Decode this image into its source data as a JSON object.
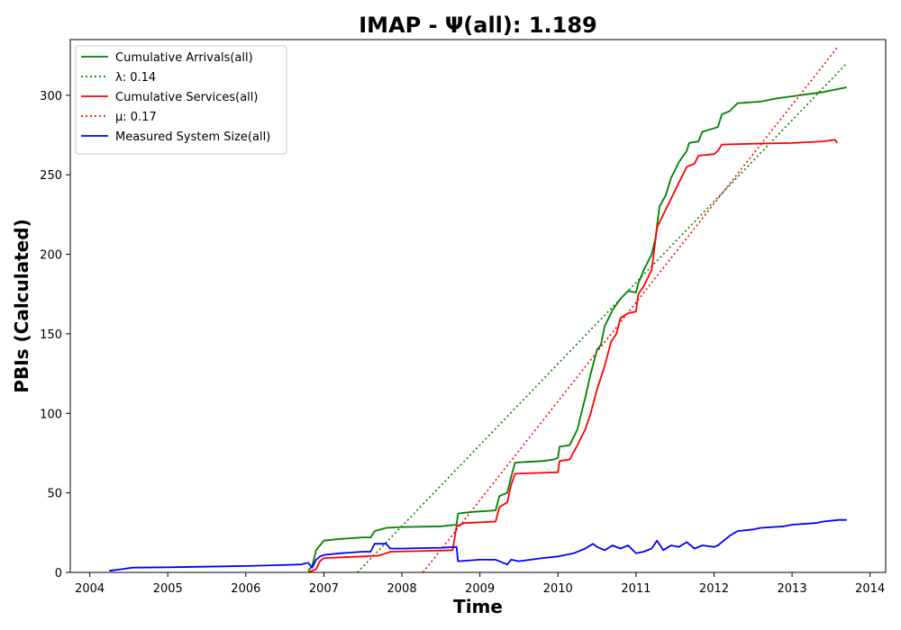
{
  "chart_data": {
    "type": "line",
    "title": "IMAP -  Ψ(all): 1.189",
    "xlabel": "Time",
    "ylabel": "PBIs (Calculated)",
    "xlim": [
      2003.75,
      2014.2
    ],
    "ylim": [
      0,
      335
    ],
    "x_ticks": [
      2004,
      2005,
      2006,
      2007,
      2008,
      2009,
      2010,
      2011,
      2012,
      2013,
      2014
    ],
    "y_ticks": [
      0,
      50,
      100,
      150,
      200,
      250,
      300
    ],
    "legend_position": "upper-left",
    "series": [
      {
        "name": "Cumulative Arrivals(all)",
        "color": "#008000",
        "style": "solid",
        "points": [
          [
            2006.8,
            1
          ],
          [
            2006.85,
            4
          ],
          [
            2006.9,
            14
          ],
          [
            2006.95,
            17
          ],
          [
            2007.0,
            20
          ],
          [
            2007.2,
            21
          ],
          [
            2007.5,
            22
          ],
          [
            2007.6,
            22
          ],
          [
            2007.65,
            26
          ],
          [
            2007.8,
            28
          ],
          [
            2008.0,
            28.5
          ],
          [
            2008.5,
            29
          ],
          [
            2008.7,
            30
          ],
          [
            2008.72,
            37
          ],
          [
            2008.9,
            38
          ],
          [
            2009.2,
            39
          ],
          [
            2009.25,
            48
          ],
          [
            2009.35,
            50
          ],
          [
            2009.4,
            60
          ],
          [
            2009.45,
            69
          ],
          [
            2009.6,
            69.5
          ],
          [
            2009.8,
            70
          ],
          [
            2009.95,
            71
          ],
          [
            2010.0,
            72
          ],
          [
            2010.02,
            79
          ],
          [
            2010.15,
            80
          ],
          [
            2010.2,
            85
          ],
          [
            2010.25,
            90
          ],
          [
            2010.3,
            100
          ],
          [
            2010.35,
            110
          ],
          [
            2010.42,
            125
          ],
          [
            2010.5,
            140
          ],
          [
            2010.55,
            143
          ],
          [
            2010.6,
            155
          ],
          [
            2010.65,
            160
          ],
          [
            2010.7,
            165
          ],
          [
            2010.8,
            172
          ],
          [
            2010.9,
            177
          ],
          [
            2011.0,
            176
          ],
          [
            2011.03,
            182
          ],
          [
            2011.1,
            190
          ],
          [
            2011.2,
            200
          ],
          [
            2011.25,
            210
          ],
          [
            2011.3,
            230
          ],
          [
            2011.38,
            237
          ],
          [
            2011.45,
            248
          ],
          [
            2011.55,
            258
          ],
          [
            2011.65,
            265
          ],
          [
            2011.68,
            270
          ],
          [
            2011.8,
            271
          ],
          [
            2011.85,
            277
          ],
          [
            2012.05,
            280
          ],
          [
            2012.1,
            288
          ],
          [
            2012.2,
            290
          ],
          [
            2012.3,
            295
          ],
          [
            2012.6,
            296
          ],
          [
            2012.8,
            298
          ],
          [
            2013.1,
            300
          ],
          [
            2013.4,
            302
          ],
          [
            2013.6,
            304
          ],
          [
            2013.7,
            305
          ]
        ]
      },
      {
        "name": "λ: 0.14",
        "color": "#008000",
        "style": "dotted",
        "points": [
          [
            2007.43,
            0
          ],
          [
            2013.7,
            320
          ]
        ]
      },
      {
        "name": "Cumulative Services(all)",
        "color": "#ff0000",
        "style": "solid",
        "points": [
          [
            2006.8,
            0
          ],
          [
            2006.9,
            2
          ],
          [
            2006.95,
            7
          ],
          [
            2007.0,
            9
          ],
          [
            2007.5,
            10
          ],
          [
            2007.7,
            10.5
          ],
          [
            2007.8,
            12
          ],
          [
            2007.85,
            13
          ],
          [
            2008.3,
            13.5
          ],
          [
            2008.65,
            14
          ],
          [
            2008.7,
            29
          ],
          [
            2008.8,
            31
          ],
          [
            2009.2,
            32
          ],
          [
            2009.25,
            41
          ],
          [
            2009.35,
            44
          ],
          [
            2009.4,
            55
          ],
          [
            2009.45,
            62
          ],
          [
            2009.7,
            62.5
          ],
          [
            2010.0,
            63
          ],
          [
            2010.02,
            70
          ],
          [
            2010.15,
            71
          ],
          [
            2010.25,
            80
          ],
          [
            2010.35,
            90
          ],
          [
            2010.42,
            100
          ],
          [
            2010.5,
            115
          ],
          [
            2010.6,
            130
          ],
          [
            2010.68,
            145
          ],
          [
            2010.75,
            150
          ],
          [
            2010.8,
            160
          ],
          [
            2010.9,
            163
          ],
          [
            2011.0,
            164
          ],
          [
            2011.03,
            175
          ],
          [
            2011.1,
            180
          ],
          [
            2011.2,
            190
          ],
          [
            2011.27,
            217
          ],
          [
            2011.35,
            225
          ],
          [
            2011.45,
            235
          ],
          [
            2011.55,
            245
          ],
          [
            2011.65,
            255
          ],
          [
            2011.75,
            257
          ],
          [
            2011.8,
            262
          ],
          [
            2012.0,
            263
          ],
          [
            2012.05,
            265
          ],
          [
            2012.1,
            269
          ],
          [
            2012.5,
            269.5
          ],
          [
            2013.0,
            270
          ],
          [
            2013.4,
            271
          ],
          [
            2013.55,
            272
          ],
          [
            2013.58,
            270
          ]
        ]
      },
      {
        "name": "μ: 0.17",
        "color": "#ff0000",
        "style": "dotted",
        "points": [
          [
            2008.27,
            0
          ],
          [
            2013.58,
            330
          ]
        ]
      },
      {
        "name": "Measured System Size(all)",
        "color": "#0000ff",
        "style": "solid",
        "points": [
          [
            2004.25,
            1
          ],
          [
            2004.4,
            2
          ],
          [
            2004.55,
            3
          ],
          [
            2005.0,
            3.2
          ],
          [
            2006.0,
            4
          ],
          [
            2006.4,
            4.5
          ],
          [
            2006.7,
            5
          ],
          [
            2006.8,
            6
          ],
          [
            2006.85,
            3
          ],
          [
            2006.9,
            8
          ],
          [
            2006.95,
            10
          ],
          [
            2007.0,
            11
          ],
          [
            2007.2,
            12
          ],
          [
            2007.5,
            13
          ],
          [
            2007.6,
            13
          ],
          [
            2007.65,
            18
          ],
          [
            2007.8,
            18
          ],
          [
            2007.85,
            15
          ],
          [
            2008.0,
            15
          ],
          [
            2008.5,
            15.5
          ],
          [
            2008.7,
            16
          ],
          [
            2008.72,
            7
          ],
          [
            2009.0,
            8
          ],
          [
            2009.2,
            8
          ],
          [
            2009.3,
            6
          ],
          [
            2009.35,
            5
          ],
          [
            2009.4,
            8
          ],
          [
            2009.5,
            7
          ],
          [
            2009.8,
            9
          ],
          [
            2010.0,
            10
          ],
          [
            2010.2,
            12
          ],
          [
            2010.35,
            15
          ],
          [
            2010.45,
            18
          ],
          [
            2010.5,
            16
          ],
          [
            2010.6,
            14
          ],
          [
            2010.7,
            17
          ],
          [
            2010.8,
            15
          ],
          [
            2010.9,
            17
          ],
          [
            2011.0,
            12
          ],
          [
            2011.1,
            13
          ],
          [
            2011.2,
            15
          ],
          [
            2011.27,
            20
          ],
          [
            2011.35,
            14
          ],
          [
            2011.45,
            17
          ],
          [
            2011.55,
            16
          ],
          [
            2011.65,
            19
          ],
          [
            2011.75,
            15
          ],
          [
            2011.85,
            17
          ],
          [
            2012.0,
            16
          ],
          [
            2012.05,
            17
          ],
          [
            2012.1,
            19
          ],
          [
            2012.2,
            23
          ],
          [
            2012.3,
            26
          ],
          [
            2012.5,
            27
          ],
          [
            2012.6,
            28
          ],
          [
            2012.9,
            29
          ],
          [
            2013.0,
            30
          ],
          [
            2013.3,
            31
          ],
          [
            2013.4,
            32
          ],
          [
            2013.6,
            33
          ],
          [
            2013.7,
            33
          ]
        ]
      }
    ]
  }
}
